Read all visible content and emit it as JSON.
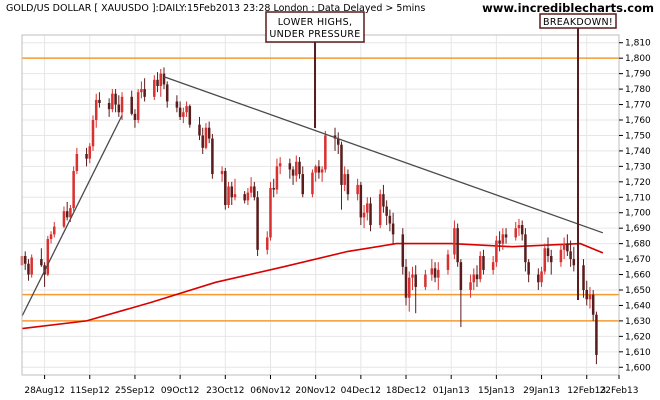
{
  "header": {
    "title": "GOLD/US DOLLAR [ XAUUSDO ]:DAILY:15Feb2013 23:28 London : Data Delayed > 5mins",
    "site": "www.incrediblecharts.com"
  },
  "annotations": {
    "lower_highs_1": "LOWER HIGHS,",
    "lower_highs_2": "UNDER PRESSURE",
    "breakdown": "BREAKDOWN!"
  },
  "colors": {
    "candle_up": "#d93030",
    "candle_down": "#5a1c1c",
    "horizontal_line": "#f59a32",
    "moving_average": "#d90000",
    "trendline": "#4a4a4a",
    "annotation_border": "#5a1c1c",
    "grid": "#e6e6e6"
  },
  "chart_data": {
    "type": "candlestick",
    "title": "GOLD/US DOLLAR [ XAUUSDO ]:DAILY:15Feb2013 23:28 London : Data Delayed > 5mins",
    "x_tick_labels": [
      "28Aug12",
      "11Sep12",
      "25Sep12",
      "09Oct12",
      "23Oct12",
      "06Nov12",
      "20Nov12",
      "04Dec12",
      "18Dec12",
      "01Jan13",
      "15Jan13",
      "29Jan13",
      "12Feb13",
      "22Feb13"
    ],
    "y_tick_labels": [
      "1,600",
      "1,610",
      "1,620",
      "1,630",
      "1,640",
      "1,650",
      "1,660",
      "1,670",
      "1,680",
      "1,690",
      "1,700",
      "1,710",
      "1,720",
      "1,730",
      "1,740",
      "1,750",
      "1,760",
      "1,770",
      "1,780",
      "1,790",
      "1,800",
      "1,810"
    ],
    "ylim": [
      1595,
      1815
    ],
    "xlim": [
      "2012-08-21",
      "2013-02-22"
    ],
    "grid": true,
    "y_axis_side": "right",
    "horizontal_lines": [
      1800,
      1630,
      1647
    ],
    "trendlines": [
      {
        "from": [
          "2012-08-21",
          1633
        ],
        "to": [
          "2012-09-21",
          1763
        ]
      },
      {
        "from": [
          "2012-10-04",
          1788
        ],
        "to": [
          "2013-02-17",
          1687
        ]
      }
    ],
    "moving_average": [
      [
        "2012-08-21",
        1625
      ],
      [
        "2012-09-10",
        1630
      ],
      [
        "2012-09-30",
        1642
      ],
      [
        "2012-10-20",
        1655
      ],
      [
        "2012-11-10",
        1665
      ],
      [
        "2012-11-30",
        1675
      ],
      [
        "2012-12-15",
        1680
      ],
      [
        "2013-01-01",
        1680
      ],
      [
        "2013-01-20",
        1678
      ],
      [
        "2013-02-10",
        1680
      ],
      [
        "2013-02-17",
        1674
      ]
    ],
    "series": [
      {
        "name": "",
        "ohlc": [
          [
            "2012-08-21",
            1666,
            1674,
            1664,
            1672
          ],
          [
            "2012-08-22",
            1672,
            1675,
            1663,
            1667
          ],
          [
            "2012-08-23",
            1667,
            1670,
            1656,
            1660
          ],
          [
            "2012-08-24",
            1660,
            1673,
            1658,
            1671
          ],
          [
            "2012-08-27",
            1670,
            1677,
            1665,
            1666
          ],
          [
            "2012-08-28",
            1666,
            1668,
            1652,
            1660
          ],
          [
            "2012-08-29",
            1660,
            1685,
            1659,
            1683
          ],
          [
            "2012-08-30",
            1683,
            1688,
            1680,
            1686
          ],
          [
            "2012-08-31",
            1686,
            1694,
            1684,
            1691
          ],
          [
            "2012-09-03",
            1691,
            1704,
            1690,
            1701
          ],
          [
            "2012-09-04",
            1701,
            1707,
            1695,
            1697
          ],
          [
            "2012-09-05",
            1697,
            1705,
            1694,
            1703
          ],
          [
            "2012-09-06",
            1703,
            1730,
            1701,
            1727
          ],
          [
            "2012-09-07",
            1727,
            1742,
            1725,
            1738
          ],
          [
            "2012-09-10",
            1738,
            1742,
            1730,
            1735
          ],
          [
            "2012-09-11",
            1735,
            1745,
            1732,
            1743
          ],
          [
            "2012-09-12",
            1743,
            1763,
            1740,
            1760
          ],
          [
            "2012-09-13",
            1760,
            1777,
            1755,
            1773
          ],
          [
            "2012-09-14",
            1773,
            1778,
            1768,
            1771
          ],
          [
            "2012-09-17",
            1771,
            1774,
            1762,
            1767
          ],
          [
            "2012-09-18",
            1767,
            1780,
            1765,
            1777
          ],
          [
            "2012-09-19",
            1777,
            1780,
            1765,
            1770
          ],
          [
            "2012-09-20",
            1770,
            1776,
            1762,
            1765
          ],
          [
            "2012-09-21",
            1765,
            1778,
            1760,
            1775
          ],
          [
            "2012-09-24",
            1775,
            1779,
            1763,
            1764
          ],
          [
            "2012-09-25",
            1764,
            1767,
            1755,
            1760
          ],
          [
            "2012-09-26",
            1760,
            1780,
            1758,
            1778
          ],
          [
            "2012-09-27",
            1778,
            1785,
            1774,
            1780
          ],
          [
            "2012-09-28",
            1780,
            1787,
            1772,
            1775
          ],
          [
            "2012-10-01",
            1775,
            1789,
            1773,
            1786
          ],
          [
            "2012-10-02",
            1786,
            1791,
            1778,
            1782
          ],
          [
            "2012-10-03",
            1782,
            1793,
            1775,
            1790
          ],
          [
            "2012-10-04",
            1790,
            1794,
            1780,
            1783
          ],
          [
            "2012-10-05",
            1783,
            1785,
            1768,
            1772
          ],
          [
            "2012-10-08",
            1772,
            1776,
            1765,
            1768
          ],
          [
            "2012-10-09",
            1768,
            1772,
            1760,
            1762
          ],
          [
            "2012-10-10",
            1762,
            1768,
            1758,
            1765
          ],
          [
            "2012-10-11",
            1765,
            1772,
            1762,
            1769
          ],
          [
            "2012-10-12",
            1769,
            1770,
            1755,
            1757
          ],
          [
            "2012-10-15",
            1757,
            1762,
            1747,
            1750
          ],
          [
            "2012-10-16",
            1750,
            1755,
            1738,
            1742
          ],
          [
            "2012-10-17",
            1742,
            1758,
            1741,
            1755
          ],
          [
            "2012-10-18",
            1755,
            1759,
            1745,
            1748
          ],
          [
            "2012-10-19",
            1748,
            1751,
            1722,
            1725
          ],
          [
            "2012-10-22",
            1725,
            1730,
            1720,
            1727
          ],
          [
            "2012-10-23",
            1727,
            1729,
            1702,
            1705
          ],
          [
            "2012-10-24",
            1705,
            1720,
            1703,
            1717
          ],
          [
            "2012-10-25",
            1717,
            1720,
            1705,
            1710
          ],
          [
            "2012-10-26",
            1710,
            1722,
            1708,
            1712
          ],
          [
            "2012-10-29",
            1712,
            1714,
            1706,
            1708
          ],
          [
            "2012-10-30",
            1708,
            1716,
            1705,
            1713
          ],
          [
            "2012-10-31",
            1713,
            1723,
            1710,
            1717
          ],
          [
            "2012-11-01",
            1717,
            1720,
            1708,
            1710
          ],
          [
            "2012-11-02",
            1710,
            1714,
            1672,
            1676
          ],
          [
            "2012-11-05",
            1676,
            1688,
            1673,
            1684
          ],
          [
            "2012-11-06",
            1684,
            1720,
            1682,
            1716
          ],
          [
            "2012-11-07",
            1716,
            1722,
            1710,
            1715
          ],
          [
            "2012-11-08",
            1715,
            1735,
            1712,
            1730
          ],
          [
            "2012-11-09",
            1730,
            1736,
            1725,
            1732
          ],
          [
            "2012-11-12",
            1732,
            1735,
            1722,
            1728
          ],
          [
            "2012-11-13",
            1728,
            1730,
            1718,
            1724
          ],
          [
            "2012-11-14",
            1724,
            1737,
            1720,
            1733
          ],
          [
            "2012-11-15",
            1733,
            1736,
            1722,
            1725
          ],
          [
            "2012-11-16",
            1725,
            1730,
            1710,
            1712
          ],
          [
            "2012-11-19",
            1712,
            1728,
            1710,
            1726
          ],
          [
            "2012-11-20",
            1726,
            1731,
            1720,
            1730
          ],
          [
            "2012-11-21",
            1730,
            1734,
            1722,
            1726
          ],
          [
            "2012-11-22",
            1726,
            1730,
            1720,
            1728
          ],
          [
            "2012-11-23",
            1728,
            1753,
            1726,
            1750
          ],
          [
            "2012-11-26",
            1750,
            1755,
            1740,
            1748
          ],
          [
            "2012-11-27",
            1748,
            1752,
            1738,
            1744
          ],
          [
            "2012-11-28",
            1744,
            1746,
            1702,
            1718
          ],
          [
            "2012-11-29",
            1718,
            1730,
            1714,
            1725
          ],
          [
            "2012-11-30",
            1725,
            1728,
            1708,
            1712
          ],
          [
            "2012-12-03",
            1712,
            1722,
            1708,
            1718
          ],
          [
            "2012-12-04",
            1718,
            1720,
            1692,
            1697
          ],
          [
            "2012-12-05",
            1697,
            1705,
            1690,
            1700
          ],
          [
            "2012-12-06",
            1700,
            1710,
            1695,
            1706
          ],
          [
            "2012-12-07",
            1706,
            1710,
            1688,
            1692
          ],
          [
            "2012-12-10",
            1692,
            1715,
            1690,
            1712
          ],
          [
            "2012-12-11",
            1712,
            1718,
            1700,
            1704
          ],
          [
            "2012-12-12",
            1704,
            1708,
            1692,
            1698
          ],
          [
            "2012-12-13",
            1698,
            1702,
            1688,
            1693
          ],
          [
            "2012-12-14",
            1693,
            1700,
            1680,
            1686
          ],
          [
            "2012-12-17",
            1686,
            1690,
            1660,
            1665
          ],
          [
            "2012-12-18",
            1665,
            1670,
            1640,
            1645
          ],
          [
            "2012-12-19",
            1645,
            1662,
            1636,
            1658
          ],
          [
            "2012-12-20",
            1658,
            1665,
            1650,
            1660
          ],
          [
            "2012-12-21",
            1660,
            1666,
            1635,
            1652
          ],
          [
            "2012-12-24",
            1652,
            1663,
            1650,
            1660
          ],
          [
            "2012-12-26",
            1660,
            1670,
            1656,
            1664
          ],
          [
            "2012-12-27",
            1664,
            1668,
            1655,
            1658
          ],
          [
            "2012-12-28",
            1658,
            1668,
            1650,
            1663
          ],
          [
            "2012-12-31",
            1663,
            1676,
            1660,
            1673
          ],
          [
            "2013-01-02",
            1673,
            1695,
            1670,
            1690
          ],
          [
            "2013-01-03",
            1690,
            1693,
            1665,
            1668
          ],
          [
            "2013-01-04",
            1668,
            1670,
            1626,
            1650
          ],
          [
            "2013-01-07",
            1650,
            1660,
            1645,
            1655
          ],
          [
            "2013-01-08",
            1655,
            1664,
            1650,
            1660
          ],
          [
            "2013-01-09",
            1660,
            1666,
            1652,
            1657
          ],
          [
            "2013-01-10",
            1657,
            1675,
            1655,
            1672
          ],
          [
            "2013-01-11",
            1672,
            1676,
            1660,
            1663
          ],
          [
            "2013-01-14",
            1663,
            1672,
            1660,
            1668
          ],
          [
            "2013-01-15",
            1668,
            1685,
            1665,
            1682
          ],
          [
            "2013-01-16",
            1682,
            1688,
            1675,
            1680
          ],
          [
            "2013-01-17",
            1680,
            1690,
            1676,
            1686
          ],
          [
            "2013-01-18",
            1686,
            1690,
            1680,
            1684
          ],
          [
            "2013-01-21",
            1684,
            1694,
            1682,
            1690
          ],
          [
            "2013-01-22",
            1690,
            1696,
            1685,
            1692
          ],
          [
            "2013-01-23",
            1692,
            1695,
            1682,
            1686
          ],
          [
            "2013-01-24",
            1686,
            1690,
            1662,
            1668
          ],
          [
            "2013-01-25",
            1668,
            1670,
            1655,
            1660
          ],
          [
            "2013-01-28",
            1660,
            1664,
            1650,
            1655
          ],
          [
            "2013-01-29",
            1655,
            1665,
            1652,
            1662
          ],
          [
            "2013-01-30",
            1662,
            1680,
            1660,
            1677
          ],
          [
            "2013-01-31",
            1677,
            1684,
            1668,
            1672
          ],
          [
            "2013-02-01",
            1672,
            1676,
            1660,
            1668
          ],
          [
            "2013-02-04",
            1668,
            1680,
            1665,
            1676
          ],
          [
            "2013-02-05",
            1676,
            1684,
            1670,
            1680
          ],
          [
            "2013-02-06",
            1680,
            1686,
            1672,
            1675
          ],
          [
            "2013-02-07",
            1675,
            1682,
            1665,
            1670
          ],
          [
            "2013-02-08",
            1670,
            1678,
            1662,
            1666
          ],
          [
            "2013-02-11",
            1666,
            1670,
            1645,
            1650
          ],
          [
            "2013-02-12",
            1650,
            1656,
            1640,
            1644
          ],
          [
            "2013-02-13",
            1644,
            1652,
            1638,
            1647
          ],
          [
            "2013-02-14",
            1647,
            1650,
            1630,
            1634
          ],
          [
            "2013-02-15",
            1634,
            1636,
            1602,
            1608
          ]
        ]
      }
    ]
  }
}
